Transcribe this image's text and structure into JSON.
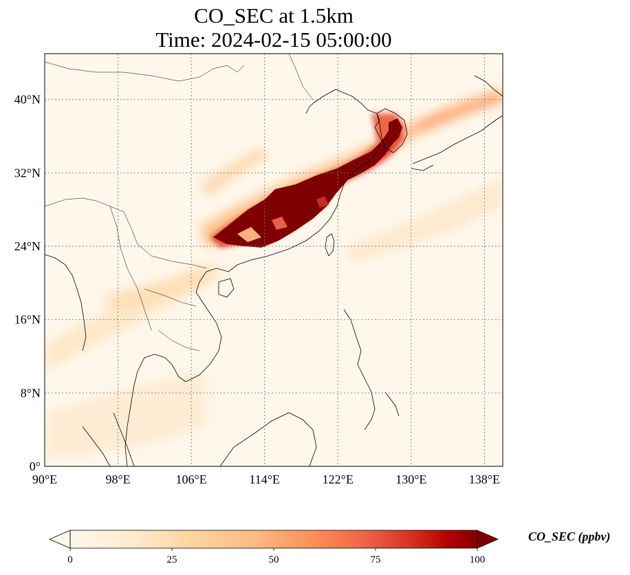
{
  "title": {
    "line1": "CO_SEC at 1.5km",
    "line2": "Time: 2024-02-15 05:00:00"
  },
  "map": {
    "lon_range": [
      90,
      140
    ],
    "lat_range": [
      0,
      45
    ],
    "lon_ticks": [
      90,
      98,
      106,
      114,
      122,
      130,
      138
    ],
    "lon_tick_labels": [
      "90°E",
      "98°E",
      "106°E",
      "114°E",
      "122°E",
      "130°E",
      "138°E"
    ],
    "lat_ticks": [
      0,
      8,
      16,
      24,
      32,
      40
    ],
    "lat_tick_labels": [
      "0°",
      "8°N",
      "16°N",
      "24°N",
      "32°N",
      "40°N"
    ],
    "gridlines": "dotted"
  },
  "colorbar": {
    "label": "CO_SEC (ppbv)",
    "ticks": [
      0,
      25,
      50,
      75,
      100
    ],
    "tick_labels": [
      "0",
      "25",
      "50",
      "75",
      "100"
    ],
    "colormap": "OrRd",
    "extend": "both"
  },
  "colors": {
    "low": "#fff7ec",
    "mid_low": "#fdd49e",
    "mid": "#fc8d59",
    "high": "#d7301f",
    "max": "#7f0000"
  }
}
